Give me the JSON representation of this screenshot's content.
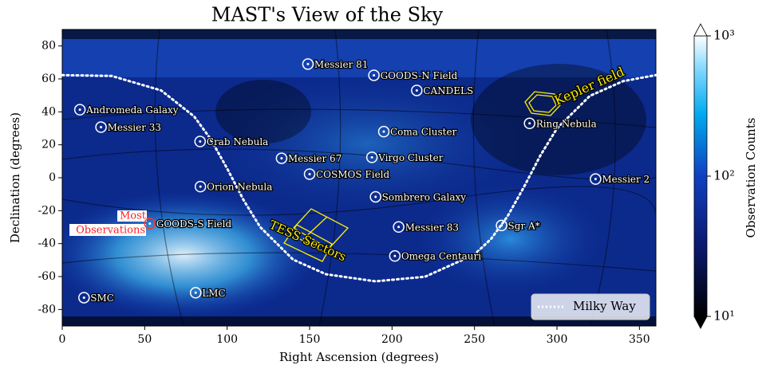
{
  "chart_data": {
    "type": "skymap",
    "title": "MAST's View of the Sky",
    "xlabel": "Right Ascension (degrees)",
    "ylabel": "Declination (degrees)",
    "xlim": [
      0,
      360
    ],
    "xticks": [
      0,
      50,
      100,
      150,
      200,
      250,
      300,
      350
    ],
    "ylim": [
      -90,
      90
    ],
    "yticks": [
      -80,
      -60,
      -40,
      -20,
      0,
      20,
      40,
      60,
      80
    ],
    "colorbar": {
      "label": "Observation Counts",
      "log": true,
      "clim": [
        10,
        1000
      ],
      "ticks": [
        {
          "value": 10,
          "label": "10¹"
        },
        {
          "value": 100,
          "label": "10²"
        },
        {
          "value": 1000,
          "label": "10³"
        }
      ]
    },
    "objects": [
      {
        "name": "Andromeda Galaxy",
        "ra": 10.7,
        "dec": 41.3
      },
      {
        "name": "Messier 33",
        "ra": 23.5,
        "dec": 30.7
      },
      {
        "name": "Crab Nebula",
        "ra": 83.6,
        "dec": 22.0
      },
      {
        "name": "Orion Nebula",
        "ra": 83.8,
        "dec": -5.4
      },
      {
        "name": "Messier 81",
        "ra": 149,
        "dec": 69
      },
      {
        "name": "GOODS-N Field",
        "ra": 189,
        "dec": 62.2
      },
      {
        "name": "CANDELS",
        "ra": 215,
        "dec": 53
      },
      {
        "name": "Coma Cluster",
        "ra": 195,
        "dec": 28
      },
      {
        "name": "Messier 67",
        "ra": 133,
        "dec": 11.8
      },
      {
        "name": "Virgo Cluster",
        "ra": 187.8,
        "dec": 12.4
      },
      {
        "name": "COSMOS Field",
        "ra": 150,
        "dec": 2.2
      },
      {
        "name": "Sombrero Galaxy",
        "ra": 190,
        "dec": -11.6
      },
      {
        "name": "Messier 83",
        "ra": 204,
        "dec": -29.9
      },
      {
        "name": "Omega Centauri",
        "ra": 201.7,
        "dec": -47.5
      },
      {
        "name": "Sgr A*",
        "ra": 266.4,
        "dec": -29
      },
      {
        "name": "Messier 2",
        "ra": 323.4,
        "dec": -0.8
      },
      {
        "name": "Ring Nebula",
        "ra": 283.4,
        "dec": 33
      },
      {
        "name": "GOODS-S Field",
        "ra": 53.1,
        "dec": -27.8,
        "color": "#ff3030"
      },
      {
        "name": "SMC",
        "ra": 13.2,
        "dec": -72.8
      },
      {
        "name": "LMC",
        "ra": 80.9,
        "dec": -69.8
      }
    ],
    "milky_way": {
      "name": "Milky Way",
      "color": "#ffffff",
      "ra": [
        0,
        30,
        60,
        80,
        90,
        100,
        110,
        120,
        140,
        160,
        190,
        220,
        250,
        260,
        270,
        280,
        290,
        300,
        320,
        340,
        360
      ],
      "dec": [
        62.3,
        61.8,
        53.0,
        37.2,
        23.5,
        5.6,
        -13.6,
        -29.9,
        -49.7,
        -58.6,
        -62.9,
        -60.1,
        -46.6,
        -37.2,
        -23.5,
        -5.6,
        13.6,
        29.9,
        49.7,
        58.6,
        62.3
      ]
    },
    "legend": "lower right",
    "kepler_label": "Kepler field",
    "tess_label": "TESS Sectors",
    "most_obs": [
      "Most",
      "Observations"
    ]
  }
}
